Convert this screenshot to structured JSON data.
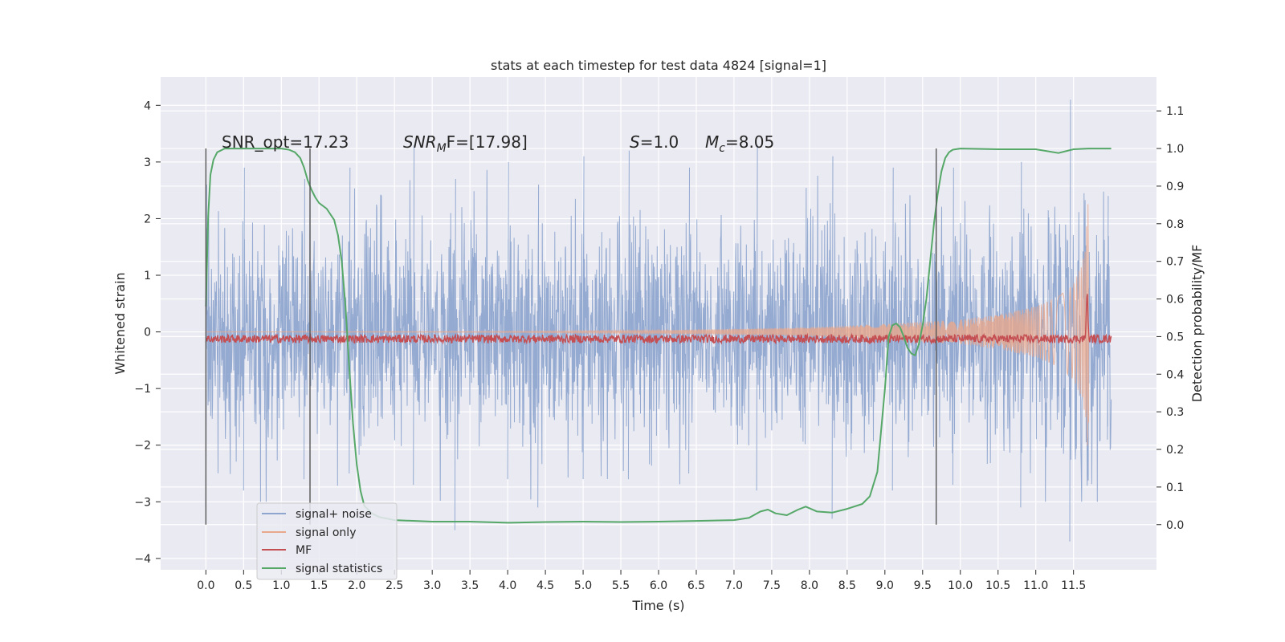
{
  "chart_data": {
    "type": "line",
    "title": "stats at each timestep for test data 4824 [signal=1]",
    "xlabel": "Time (s)",
    "ylabel_left": "Whitened strain",
    "ylabel_right": "Detection probability/MF",
    "xlim": [
      -0.6,
      12.6
    ],
    "ylim_left": [
      -4.2,
      4.5
    ],
    "ylim_right": [
      -0.12,
      1.19
    ],
    "x_ticks": [
      "0.0",
      "0.5",
      "1.0",
      "1.5",
      "2.0",
      "2.5",
      "3.0",
      "3.5",
      "4.0",
      "4.5",
      "5.0",
      "5.5",
      "6.0",
      "6.5",
      "7.0",
      "7.5",
      "8.0",
      "8.5",
      "9.0",
      "9.5",
      "10.0",
      "10.5",
      "11.0",
      "11.5"
    ],
    "y_ticks_left": [
      "−4",
      "−3",
      "−2",
      "−1",
      "0",
      "1",
      "2",
      "3",
      "4"
    ],
    "y_ticks_right": [
      "0.0",
      "0.1",
      "0.2",
      "0.3",
      "0.4",
      "0.5",
      "0.6",
      "0.7",
      "0.8",
      "0.9",
      "1.0",
      "1.1"
    ],
    "grid": true,
    "legend_position": "lower-left",
    "annotations": [
      {
        "id": "snr-opt",
        "text": "SNR_opt=17.23"
      },
      {
        "id": "snr-mf",
        "text": "SNR_MF=[17.98]",
        "base": "SNR",
        "sub": "M",
        "tail": "F=[17.98]"
      },
      {
        "id": "s-value",
        "text": "S=1.0",
        "base": "S",
        "tail": "=1.0"
      },
      {
        "id": "mc-value",
        "text": "M_c=8.05",
        "base": "M",
        "sub": "c",
        "tail": "=8.05"
      }
    ],
    "vertical_markers": [
      0.0,
      1.38,
      9.68
    ],
    "series": [
      {
        "name": "signal+ noise",
        "color": "#8fa6cf",
        "x_range": [
          0.0,
          12.0
        ],
        "envelope_peaks": [
          [
            0.0,
            -3.1,
            2.6
          ],
          [
            0.5,
            -2.8,
            2.9
          ],
          [
            1.3,
            -2.6,
            2.7
          ],
          [
            1.9,
            -2.5,
            2.9
          ],
          [
            2.75,
            -2.7,
            3.3
          ],
          [
            3.3,
            -3.5,
            2.7
          ],
          [
            4.0,
            -2.6,
            3.0
          ],
          [
            4.4,
            -3.1,
            2.6
          ],
          [
            5.0,
            -2.6,
            3.1
          ],
          [
            5.6,
            -2.6,
            3.2
          ],
          [
            6.4,
            -2.5,
            2.9
          ],
          [
            7.3,
            -2.8,
            3.3
          ],
          [
            8.3,
            -3.3,
            3.1
          ],
          [
            9.1,
            -2.8,
            2.9
          ],
          [
            9.9,
            -2.7,
            2.9
          ],
          [
            10.8,
            -3.1,
            3.0
          ],
          [
            11.45,
            -3.7,
            4.1
          ],
          [
            11.95,
            -1.9,
            2.4
          ]
        ]
      },
      {
        "name": "signal only",
        "color": "#e8a88c",
        "x": [
          0.0,
          4.0,
          6.0,
          7.0,
          8.0,
          9.0,
          10.0,
          10.5,
          11.0,
          11.3,
          11.5,
          11.6,
          11.65,
          11.68,
          11.7
        ],
        "amplitude": [
          0.0,
          0.01,
          0.03,
          0.05,
          0.08,
          0.14,
          0.22,
          0.3,
          0.45,
          0.62,
          0.85,
          1.15,
          1.5,
          2.0,
          2.6
        ]
      },
      {
        "name": "MF",
        "color": "#c44e52",
        "baseline": 0.494,
        "peak": {
          "x": 11.68,
          "y": 0.62
        }
      },
      {
        "name": "signal statistics",
        "color": "#55a868",
        "x": [
          0.0,
          0.03,
          0.06,
          0.1,
          0.15,
          0.25,
          0.4,
          0.6,
          0.8,
          1.0,
          1.1,
          1.18,
          1.25,
          1.3,
          1.35,
          1.4,
          1.45,
          1.5,
          1.6,
          1.7,
          1.75,
          1.8,
          1.85,
          1.9,
          1.95,
          2.0,
          2.05,
          2.1,
          2.2,
          2.3,
          2.5,
          3.0,
          3.5,
          4.0,
          4.5,
          5.0,
          5.5,
          6.0,
          6.5,
          7.0,
          7.2,
          7.35,
          7.45,
          7.55,
          7.7,
          7.85,
          7.95,
          8.1,
          8.3,
          8.5,
          8.7,
          8.8,
          8.9,
          9.0,
          9.05,
          9.1,
          9.15,
          9.2,
          9.25,
          9.3,
          9.35,
          9.4,
          9.45,
          9.5,
          9.55,
          9.6,
          9.65,
          9.7,
          9.75,
          9.8,
          9.85,
          9.9,
          10.0,
          10.5,
          11.0,
          11.3,
          11.5,
          11.7,
          12.0
        ],
        "y": [
          0.58,
          0.82,
          0.93,
          0.97,
          0.99,
          1.0,
          1.0,
          1.0,
          1.0,
          1.0,
          0.997,
          0.99,
          0.975,
          0.95,
          0.915,
          0.89,
          0.87,
          0.855,
          0.84,
          0.81,
          0.77,
          0.7,
          0.58,
          0.42,
          0.27,
          0.16,
          0.09,
          0.05,
          0.03,
          0.02,
          0.012,
          0.008,
          0.008,
          0.005,
          0.007,
          0.008,
          0.007,
          0.008,
          0.01,
          0.012,
          0.018,
          0.035,
          0.04,
          0.03,
          0.025,
          0.04,
          0.048,
          0.035,
          0.032,
          0.042,
          0.055,
          0.075,
          0.14,
          0.36,
          0.5,
          0.53,
          0.535,
          0.525,
          0.5,
          0.47,
          0.455,
          0.45,
          0.48,
          0.53,
          0.6,
          0.7,
          0.8,
          0.88,
          0.94,
          0.975,
          0.99,
          0.997,
          1.0,
          0.998,
          0.998,
          0.988,
          0.998,
          1.0,
          1.0
        ]
      }
    ]
  }
}
